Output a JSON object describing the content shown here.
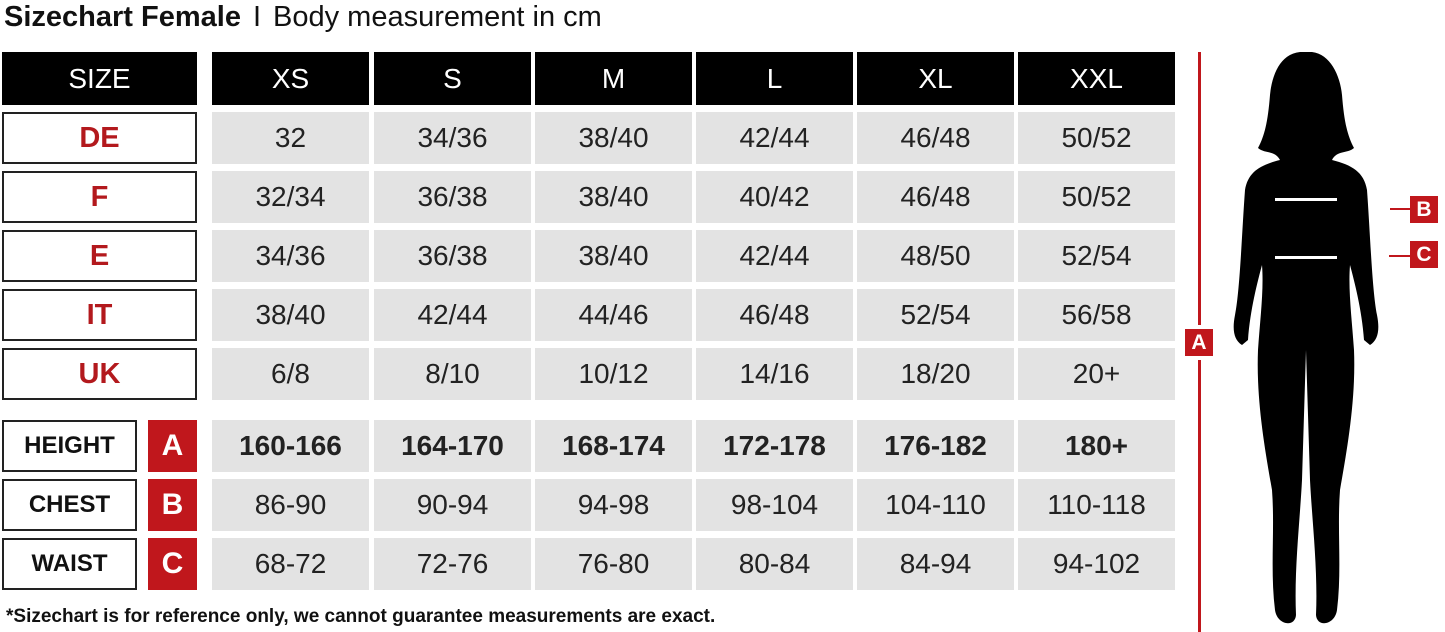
{
  "title": {
    "bold": "Sizechart Female",
    "separator": "I",
    "subtitle": "Body measurement in cm"
  },
  "header": {
    "label": "SIZE",
    "sizes": [
      "XS",
      "S",
      "M",
      "L",
      "XL",
      "XXL"
    ]
  },
  "size_rows": [
    {
      "label": "DE",
      "values": [
        "32",
        "34/36",
        "38/40",
        "42/44",
        "46/48",
        "50/52"
      ]
    },
    {
      "label": "F",
      "values": [
        "32/34",
        "36/38",
        "38/40",
        "40/42",
        "46/48",
        "50/52"
      ]
    },
    {
      "label": "E",
      "values": [
        "34/36",
        "36/38",
        "38/40",
        "42/44",
        "48/50",
        "52/54"
      ]
    },
    {
      "label": "IT",
      "values": [
        "38/40",
        "42/44",
        "44/46",
        "46/48",
        "52/54",
        "56/58"
      ]
    },
    {
      "label": "UK",
      "values": [
        "6/8",
        "8/10",
        "10/12",
        "14/16",
        "18/20",
        "20+"
      ]
    }
  ],
  "measure_rows": [
    {
      "label": "HEIGHT",
      "key": "A",
      "bold": true,
      "values": [
        "160-166",
        "164-170",
        "168-174",
        "172-178",
        "176-182",
        "180+"
      ]
    },
    {
      "label": "CHEST",
      "key": "B",
      "bold": false,
      "values": [
        "86-90",
        "90-94",
        "94-98",
        "98-104",
        "104-110",
        "110-118"
      ]
    },
    {
      "label": "WAIST",
      "key": "C",
      "bold": false,
      "values": [
        "68-72",
        "72-76",
        "76-80",
        "80-84",
        "84-94",
        "94-102"
      ]
    }
  ],
  "figure": {
    "height_tag": "A",
    "chest_tag": "B",
    "waist_tag": "C"
  },
  "footnote": "*Sizechart is for reference only, we cannot guarantee measurements are exact.",
  "colors": {
    "accent": "#c0171c",
    "header": "#000000",
    "cell": "#e3e3e3"
  }
}
